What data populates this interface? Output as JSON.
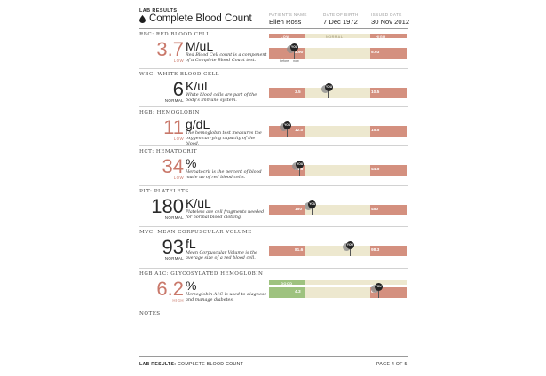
{
  "header": {
    "kicker": "LAB RESULTS",
    "title": "Complete Blood Count",
    "patient_label": "PATIENT'S NAME",
    "patient_value": "Ellen Ross",
    "dob_label": "DATE OF BIRTH",
    "dob_value": "7 Dec 1972",
    "date_label": "ISSUED DATE",
    "date_value": "30 Nov 2012"
  },
  "range_header": {
    "low": "LOW",
    "normal": "NORMAL",
    "high": "HIGH"
  },
  "you_label": "YOU",
  "before_label": "before",
  "now_label": "now",
  "tests": [
    {
      "label": "RBC: RED BLOOD CELL",
      "value": "3.7",
      "unit": "M/uL",
      "status": "LOW",
      "color": "#c9786a",
      "desc": "Red Blood Cell count is a component of a Complete Blood Count test.",
      "low": "3.90",
      "high": "5.03",
      "result": 3.7
    },
    {
      "label": "WBC: WHITE BLOOD CELL",
      "value": "6",
      "unit": "K/uL",
      "status": "NORMAL",
      "color": "#2a2a2a",
      "desc": "White blood cells are part of the body's immune system.",
      "low": "3.5",
      "high": "10.5",
      "result": 6
    },
    {
      "label": "HGB: HEMOGLOBIN",
      "value": "11",
      "unit": "g/dL",
      "status": "LOW",
      "color": "#c9786a",
      "desc": "The hemoglobin test measures the oxygen carrying capacity of the blood.",
      "low": "12.0",
      "high": "15.5",
      "result": 11
    },
    {
      "label": "HCT: HEMATOCRIT",
      "value": "34",
      "unit": "%",
      "status": "LOW",
      "color": "#c9786a",
      "desc": "Hematocrit is the percent of blood made up of red blood cells.",
      "low": "34.9",
      "high": "44.5",
      "result": 34
    },
    {
      "label": "PLT: PLATELETS",
      "value": "180",
      "unit": "K/uL",
      "status": "NORMAL",
      "color": "#2a2a2a",
      "desc": "Platelets are cell fragments needed for normal blood clotting.",
      "low": "150",
      "high": "450",
      "result": 180
    },
    {
      "label": "MVC: MEAN CORPUSCULAR VOLUME",
      "value": "93",
      "unit": "fL",
      "status": "NORMAL",
      "color": "#2a2a2a",
      "desc": "Mean Corpuscular Volume is the average size of a red blood cell.",
      "low": "81.6",
      "high": "98.3",
      "result": 93
    },
    {
      "label": "HGB A1C: GLYCOSYLATED HEMOGLOBIN",
      "value": "6.2",
      "unit": "%",
      "status": "HIGH",
      "color": "#c9786a",
      "desc": "Hemoglobin A1C is used to diagnose and manage diabetes.",
      "low": "4.3",
      "high": "6.0",
      "good": "GOOD",
      "result": 6.2
    }
  ],
  "notes_label": "NOTES",
  "footer": {
    "left_bold": "LAB RESULTS:",
    "left_rest": "COMPLETE BLOOD COUNT",
    "right": "PAGE 4 OF 5"
  },
  "colors": {
    "low_red": "#d4907f",
    "normal_tan": "#ede8cf",
    "good_green": "#9ec27f",
    "text_red": "#c9786a"
  }
}
